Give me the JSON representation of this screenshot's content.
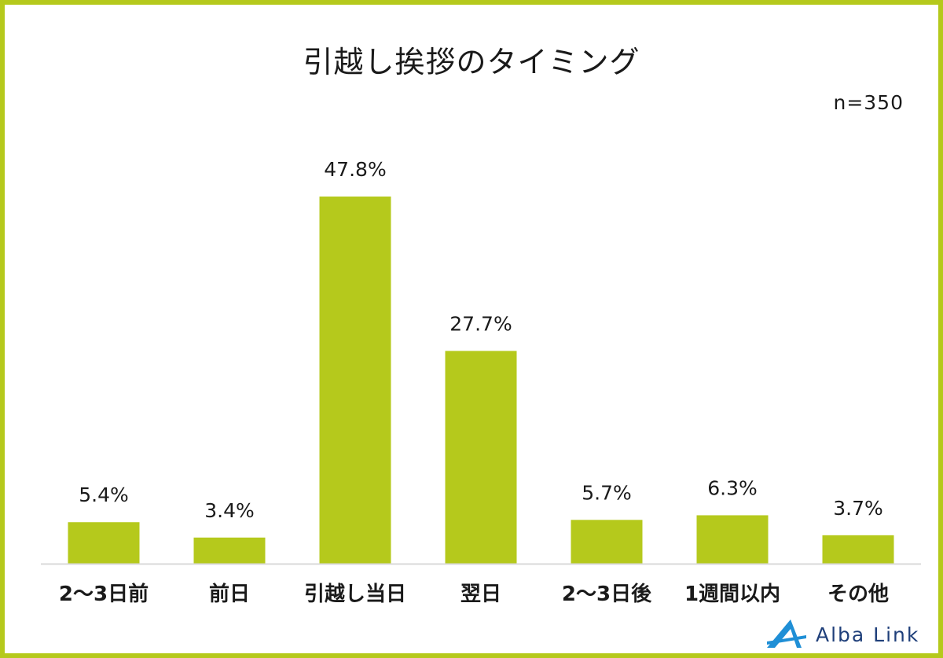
{
  "chart_data": {
    "type": "bar",
    "title": "引越し挨拶のタイミング",
    "sample_size": "n=350",
    "categories": [
      "2～3日前",
      "前日",
      "引越し当日",
      "翌日",
      "2～3日後",
      "1週間以内",
      "その他"
    ],
    "values": [
      5.4,
      3.4,
      47.8,
      27.7,
      5.7,
      6.3,
      3.7
    ],
    "value_labels": [
      "5.4%",
      "3.4%",
      "47.8%",
      "27.7%",
      "5.7%",
      "6.3%",
      "3.7%"
    ],
    "ylim": [
      0,
      52
    ],
    "grid": false,
    "legend": "none",
    "bar_color": "#b5c91c"
  },
  "brand": {
    "name": "Alba Link",
    "frame_color": "#b5c91c",
    "logo_color": "#1f8fd6"
  }
}
